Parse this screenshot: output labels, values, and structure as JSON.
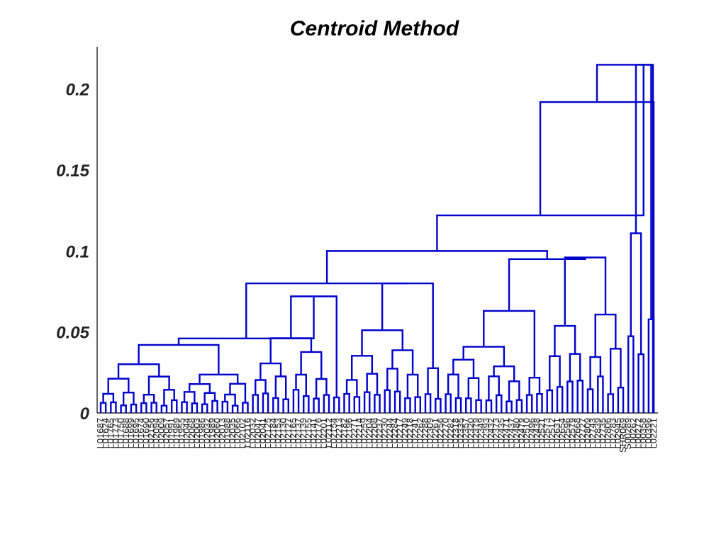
{
  "chart_data": {
    "type": "dendrogram",
    "title": "Centroid Method",
    "xlabel": "",
    "ylabel": "",
    "ylim": [
      0,
      0.22
    ],
    "yticks": [
      {
        "value": 0,
        "label": "0"
      },
      {
        "value": 0.05,
        "label": "0.05"
      },
      {
        "value": 0.1,
        "label": "0.1"
      },
      {
        "value": 0.15,
        "label": "0.15"
      },
      {
        "value": 0.2,
        "label": "0.2"
      }
    ],
    "line_color": "#0000cc",
    "leaf_count": 110,
    "leaf_labels": [
      "L01687",
      "L01624",
      "L01765",
      "L01773",
      "L01750",
      "L01688",
      "L01699",
      "L01695",
      "L01674",
      "L01690",
      "L02156",
      "L02094",
      "L02009",
      "L02057",
      "L01991",
      "L01989",
      "L01955",
      "L02044",
      "L02068",
      "L02003",
      "L01986",
      "L02032",
      "L01989",
      "L02060",
      "L02013",
      "L01988",
      "L02035",
      "L02066",
      "L02102",
      "L02116",
      "L02032",
      "L02047",
      "L02041",
      "L02125",
      "L02184",
      "L02153",
      "L02130",
      "L02127",
      "L02165",
      "L02137",
      "L02139",
      "L02155",
      "L02141",
      "L02176",
      "L02201",
      "L02112",
      "L02154",
      "L02213",
      "L02182",
      "L02196",
      "L02271",
      "L02214",
      "L02259",
      "L02204",
      "L02208",
      "L02237",
      "L02230",
      "L02244",
      "L02284",
      "L02217",
      "L02249",
      "L02218",
      "L02241",
      "L02262",
      "L02288",
      "L02309",
      "L02261",
      "L02256",
      "L02270",
      "L02282",
      "L02318",
      "L02335",
      "L02357",
      "L02320",
      "L02379",
      "L02349",
      "L02393",
      "L02432",
      "L02373",
      "L02435",
      "L02471",
      "L02437",
      "L02480",
      "L02479",
      "L02510",
      "L02496",
      "L02438",
      "L02521",
      "L02573",
      "L02512",
      "L02631",
      "L02654",
      "L02596",
      "L02579",
      "L02668",
      "L02727",
      "L02809",
      "L02743",
      "L02839",
      "L02735",
      "L02806",
      "L02783",
      "L02945",
      "SHR069",
      "S00289",
      "L00262",
      "L00272",
      "L00358",
      "L00396",
      "L02221"
    ],
    "link_heights": [
      0.008,
      0.011,
      0.013,
      0.015,
      0.018,
      0.019,
      0.027,
      0.035,
      0.036,
      0.042,
      0.043,
      0.045,
      0.046,
      0.049,
      0.069,
      0.072,
      0.08,
      0.067,
      0.07,
      0.047,
      0.048,
      0.054,
      0.06,
      0.061,
      0.063,
      0.075,
      0.071,
      0.089,
      0.091,
      0.095,
      0.096,
      0.1,
      0.122,
      0.123,
      0.127,
      0.158,
      0.192,
      0.215
    ]
  }
}
